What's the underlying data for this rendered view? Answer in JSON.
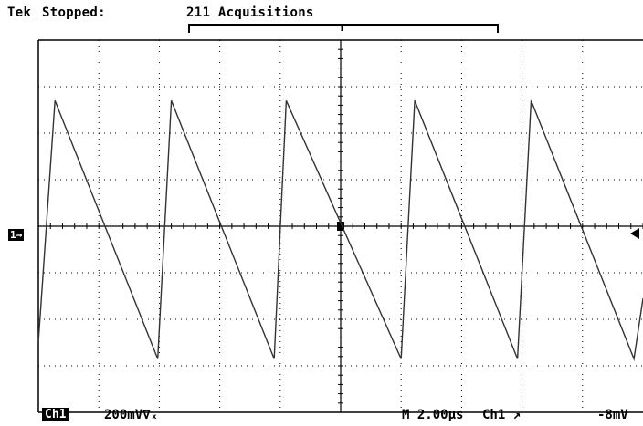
{
  "header": {
    "brand": "Tek",
    "state": "Stopped:",
    "acquisitions": "211 Acquisitions",
    "trigger_position_glyph": "T"
  },
  "footer": {
    "channel_badge": "Ch1",
    "volts_per_div": "200mV∇ₓ",
    "timebase": "M 2.00µs",
    "trigger_source": "Ch1 ↗",
    "trigger_level": "-8mV"
  },
  "markers": {
    "channel_ground": "1→",
    "trigger_level_icon": "triangle-left-icon"
  },
  "grid": {
    "h_divisions": 10,
    "v_divisions": 8,
    "minor_ticks": 5
  },
  "chart_data": {
    "type": "line",
    "title": "",
    "xlabel": "",
    "ylabel": "",
    "waveform": "sawtooth",
    "xlim": [
      0,
      20
    ],
    "ylim": [
      -800,
      800
    ],
    "x_unit": "µs",
    "y_unit": "mV",
    "x": [
      0.0,
      0.55,
      3.95,
      4.4,
      7.8,
      8.2,
      12.0,
      12.45,
      15.85,
      16.3,
      19.7,
      20.0
    ],
    "y": [
      -500,
      540,
      -570,
      540,
      -570,
      540,
      -570,
      540,
      -570,
      540,
      -570,
      -310
    ]
  },
  "colors": {
    "trace": "#333333",
    "grid": "#000000",
    "background": "#ffffff"
  }
}
